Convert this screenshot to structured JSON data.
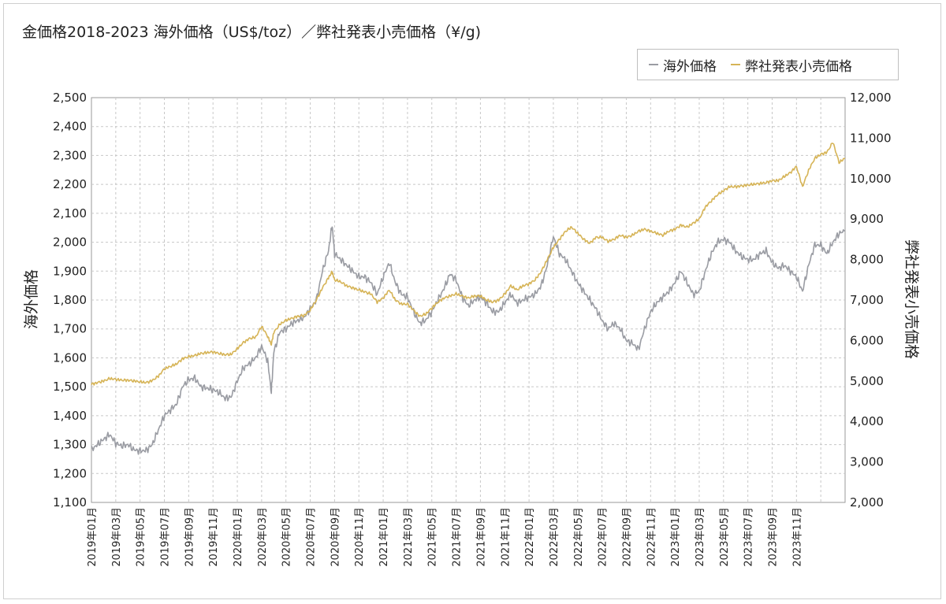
{
  "chart_data": {
    "type": "line",
    "title": "金価格2018-2023 海外価格（US$/toz）／弊社発表小売価格（¥/g)",
    "ylabel": "海外価格",
    "y2label": "弊社発表小売価格",
    "ylim": [
      1100,
      2500
    ],
    "y2lim": [
      2000,
      12000
    ],
    "yticks": [
      "1,100",
      "1,200",
      "1,300",
      "1,400",
      "1,500",
      "1,600",
      "1,700",
      "1,800",
      "1,900",
      "2,000",
      "2,100",
      "2,200",
      "2,300",
      "2,400",
      "2,500"
    ],
    "y2ticks": [
      "2,000",
      "3,000",
      "4,000",
      "5,000",
      "6,000",
      "7,000",
      "8,000",
      "9,000",
      "10,000",
      "11,000",
      "12,000"
    ],
    "xticks": [
      "2019年01月",
      "2019年03月",
      "2019年05月",
      "2019年07月",
      "2019年09月",
      "2019年11月",
      "2020年01月",
      "2020年03月",
      "2020年05月",
      "2020年07月",
      "2020年09月",
      "2020年11月",
      "2021年01月",
      "2021年03月",
      "2021年05月",
      "2021年07月",
      "2021年09月",
      "2021年11月",
      "2022年01月",
      "2022年03月",
      "2022年05月",
      "2022年07月",
      "2022年09月",
      "2022年11月",
      "2023年01月",
      "2023年03月",
      "2023年05月",
      "2023年07月",
      "2023年09月",
      "2023年11月"
    ],
    "grid": true,
    "legend": "top-right",
    "series": [
      {
        "name": "海外価格",
        "axis": "left",
        "color": "#9a9ca3",
        "points": [
          [
            0,
            1283
          ],
          [
            0.5,
            1300
          ],
          [
            1,
            1318
          ],
          [
            1.5,
            1335
          ],
          [
            2,
            1305
          ],
          [
            2.5,
            1295
          ],
          [
            3,
            1300
          ],
          [
            3.5,
            1282
          ],
          [
            4,
            1278
          ],
          [
            4.5,
            1280
          ],
          [
            5,
            1300
          ],
          [
            5.5,
            1350
          ],
          [
            6,
            1400
          ],
          [
            6.5,
            1420
          ],
          [
            7,
            1440
          ],
          [
            7.5,
            1500
          ],
          [
            8,
            1525
          ],
          [
            8.5,
            1530
          ],
          [
            9,
            1500
          ],
          [
            9.5,
            1495
          ],
          [
            10,
            1490
          ],
          [
            10.5,
            1480
          ],
          [
            11,
            1460
          ],
          [
            11.5,
            1465
          ],
          [
            12,
            1520
          ],
          [
            12.5,
            1565
          ],
          [
            13,
            1580
          ],
          [
            13.5,
            1600
          ],
          [
            14,
            1640
          ],
          [
            14.5,
            1590
          ],
          [
            14.8,
            1480
          ],
          [
            15,
            1620
          ],
          [
            15.5,
            1690
          ],
          [
            16,
            1700
          ],
          [
            16.5,
            1720
          ],
          [
            17,
            1730
          ],
          [
            17.5,
            1740
          ],
          [
            18,
            1770
          ],
          [
            18.5,
            1800
          ],
          [
            19,
            1900
          ],
          [
            19.5,
            1970
          ],
          [
            19.8,
            2060
          ],
          [
            20,
            1960
          ],
          [
            20.5,
            1940
          ],
          [
            21,
            1920
          ],
          [
            21.5,
            1900
          ],
          [
            22,
            1880
          ],
          [
            22.5,
            1880
          ],
          [
            23,
            1860
          ],
          [
            23.5,
            1820
          ],
          [
            24,
            1880
          ],
          [
            24.5,
            1930
          ],
          [
            25,
            1860
          ],
          [
            25.5,
            1820
          ],
          [
            26,
            1810
          ],
          [
            26.5,
            1760
          ],
          [
            27,
            1720
          ],
          [
            27.5,
            1730
          ],
          [
            28,
            1760
          ],
          [
            28.5,
            1800
          ],
          [
            29,
            1840
          ],
          [
            29.5,
            1890
          ],
          [
            30,
            1870
          ],
          [
            30.5,
            1810
          ],
          [
            31,
            1780
          ],
          [
            31.5,
            1800
          ],
          [
            32,
            1810
          ],
          [
            32.5,
            1790
          ],
          [
            33,
            1760
          ],
          [
            33.5,
            1760
          ],
          [
            34,
            1790
          ],
          [
            34.5,
            1820
          ],
          [
            35,
            1790
          ],
          [
            35.5,
            1800
          ],
          [
            36,
            1810
          ],
          [
            36.5,
            1820
          ],
          [
            37,
            1850
          ],
          [
            37.5,
            1920
          ],
          [
            38,
            2020
          ],
          [
            38.5,
            1960
          ],
          [
            39,
            1940
          ],
          [
            39.5,
            1900
          ],
          [
            40,
            1860
          ],
          [
            40.5,
            1830
          ],
          [
            41,
            1800
          ],
          [
            41.5,
            1770
          ],
          [
            42,
            1730
          ],
          [
            42.5,
            1700
          ],
          [
            43,
            1720
          ],
          [
            43.5,
            1700
          ],
          [
            44,
            1660
          ],
          [
            44.5,
            1650
          ],
          [
            45,
            1630
          ],
          [
            45.5,
            1700
          ],
          [
            46,
            1760
          ],
          [
            46.5,
            1790
          ],
          [
            47,
            1810
          ],
          [
            47.5,
            1830
          ],
          [
            48,
            1860
          ],
          [
            48.5,
            1900
          ],
          [
            49,
            1860
          ],
          [
            49.5,
            1820
          ],
          [
            50,
            1830
          ],
          [
            50.5,
            1900
          ],
          [
            51,
            1960
          ],
          [
            51.5,
            2000
          ],
          [
            52,
            2010
          ],
          [
            52.5,
            2000
          ],
          [
            53,
            1970
          ],
          [
            53.5,
            1950
          ],
          [
            54,
            1940
          ],
          [
            54.5,
            1940
          ],
          [
            55,
            1960
          ],
          [
            55.5,
            1970
          ],
          [
            56,
            1930
          ],
          [
            56.5,
            1910
          ],
          [
            57,
            1920
          ],
          [
            57.5,
            1900
          ],
          [
            58,
            1880
          ],
          [
            58.5,
            1830
          ],
          [
            59,
            1920
          ],
          [
            59.5,
            1990
          ],
          [
            60,
            1990
          ],
          [
            60.5,
            1960
          ],
          [
            61,
            2000
          ],
          [
            61.5,
            2030
          ],
          [
            62,
            2040
          ]
        ]
      },
      {
        "name": "弊社発表小売価格",
        "axis": "right",
        "color": "#d6b457",
        "points": [
          [
            0,
            4920
          ],
          [
            0.5,
            4960
          ],
          [
            1,
            5000
          ],
          [
            1.5,
            5060
          ],
          [
            2,
            5040
          ],
          [
            2.5,
            5020
          ],
          [
            3,
            5020
          ],
          [
            3.5,
            5000
          ],
          [
            4,
            4980
          ],
          [
            4.5,
            4960
          ],
          [
            5,
            5010
          ],
          [
            5.5,
            5120
          ],
          [
            6,
            5300
          ],
          [
            6.5,
            5360
          ],
          [
            7,
            5420
          ],
          [
            7.5,
            5550
          ],
          [
            8,
            5600
          ],
          [
            8.5,
            5630
          ],
          [
            9,
            5680
          ],
          [
            9.5,
            5700
          ],
          [
            10,
            5720
          ],
          [
            10.5,
            5680
          ],
          [
            11,
            5650
          ],
          [
            11.5,
            5660
          ],
          [
            12,
            5800
          ],
          [
            12.5,
            5950
          ],
          [
            13,
            6050
          ],
          [
            13.5,
            6080
          ],
          [
            14,
            6350
          ],
          [
            14.5,
            6100
          ],
          [
            14.8,
            5900
          ],
          [
            15,
            6200
          ],
          [
            15.5,
            6400
          ],
          [
            16,
            6500
          ],
          [
            16.5,
            6550
          ],
          [
            17,
            6600
          ],
          [
            17.5,
            6620
          ],
          [
            18,
            6750
          ],
          [
            18.5,
            7000
          ],
          [
            19,
            7300
          ],
          [
            19.5,
            7550
          ],
          [
            19.8,
            7700
          ],
          [
            20,
            7500
          ],
          [
            20.5,
            7450
          ],
          [
            21,
            7350
          ],
          [
            21.5,
            7300
          ],
          [
            22,
            7250
          ],
          [
            22.5,
            7200
          ],
          [
            23,
            7150
          ],
          [
            23.5,
            6950
          ],
          [
            24,
            7050
          ],
          [
            24.5,
            7250
          ],
          [
            25,
            7000
          ],
          [
            25.5,
            6900
          ],
          [
            26,
            6900
          ],
          [
            26.5,
            6750
          ],
          [
            27,
            6600
          ],
          [
            27.5,
            6650
          ],
          [
            28,
            6800
          ],
          [
            28.5,
            6950
          ],
          [
            29,
            7050
          ],
          [
            29.5,
            7100
          ],
          [
            30,
            7150
          ],
          [
            30.5,
            7100
          ],
          [
            31,
            7050
          ],
          [
            31.5,
            7100
          ],
          [
            32,
            7100
          ],
          [
            32.5,
            7000
          ],
          [
            33,
            6950
          ],
          [
            33.5,
            7000
          ],
          [
            34,
            7150
          ],
          [
            34.5,
            7350
          ],
          [
            35,
            7250
          ],
          [
            35.5,
            7350
          ],
          [
            36,
            7400
          ],
          [
            36.5,
            7500
          ],
          [
            37,
            7700
          ],
          [
            37.5,
            8000
          ],
          [
            38,
            8300
          ],
          [
            38.5,
            8500
          ],
          [
            39,
            8700
          ],
          [
            39.5,
            8800
          ],
          [
            40,
            8650
          ],
          [
            40.5,
            8500
          ],
          [
            41,
            8400
          ],
          [
            41.5,
            8550
          ],
          [
            42,
            8550
          ],
          [
            42.5,
            8450
          ],
          [
            43,
            8500
          ],
          [
            43.5,
            8600
          ],
          [
            44,
            8550
          ],
          [
            44.5,
            8600
          ],
          [
            45,
            8700
          ],
          [
            45.5,
            8750
          ],
          [
            46,
            8700
          ],
          [
            46.5,
            8650
          ],
          [
            47,
            8600
          ],
          [
            47.5,
            8700
          ],
          [
            48,
            8750
          ],
          [
            48.5,
            8850
          ],
          [
            49,
            8800
          ],
          [
            49.5,
            8900
          ],
          [
            50,
            9000
          ],
          [
            50.5,
            9300
          ],
          [
            51,
            9450
          ],
          [
            51.5,
            9600
          ],
          [
            52,
            9700
          ],
          [
            52.5,
            9800
          ],
          [
            53,
            9800
          ],
          [
            53.5,
            9820
          ],
          [
            54,
            9840
          ],
          [
            54.5,
            9860
          ],
          [
            55,
            9880
          ],
          [
            55.5,
            9900
          ],
          [
            56,
            9950
          ],
          [
            56.5,
            9950
          ],
          [
            57,
            10050
          ],
          [
            57.5,
            10150
          ],
          [
            58,
            10300
          ],
          [
            58.5,
            9800
          ],
          [
            59,
            10200
          ],
          [
            59.5,
            10500
          ],
          [
            60,
            10600
          ],
          [
            60.5,
            10650
          ],
          [
            61,
            10900
          ],
          [
            61.5,
            10400
          ],
          [
            62,
            10500
          ]
        ]
      }
    ]
  }
}
